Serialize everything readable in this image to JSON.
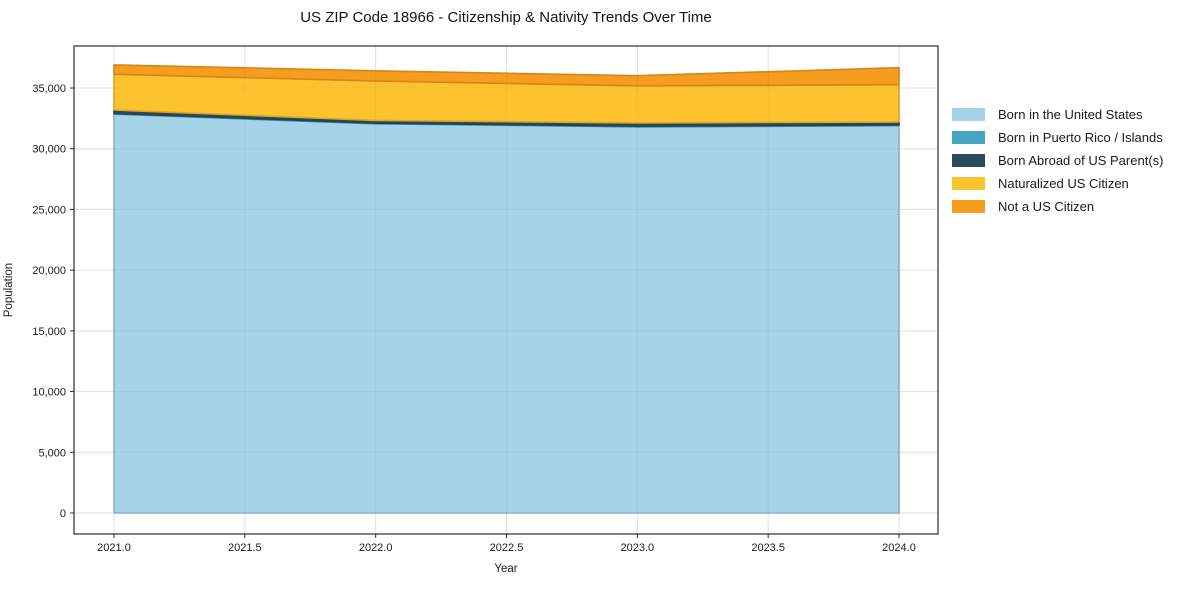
{
  "chart_data": {
    "type": "area",
    "stacked": true,
    "title": "US ZIP Code 18966 - Citizenship & Nativity Trends Over Time",
    "xlabel": "Year",
    "ylabel": "Population",
    "x": [
      2021,
      2022,
      2023,
      2024
    ],
    "x_ticks": [
      2021.0,
      2021.5,
      2022.0,
      2022.5,
      2023.0,
      2023.5,
      2024.0
    ],
    "x_tick_labels": [
      "2021.0",
      "2021.5",
      "2022.0",
      "2022.5",
      "2023.0",
      "2023.5",
      "2024.0"
    ],
    "y_ticks": [
      0,
      5000,
      10000,
      15000,
      20000,
      25000,
      30000,
      35000
    ],
    "y_tick_labels": [
      "0",
      "5,000",
      "10,000",
      "15,000",
      "20,000",
      "25,000",
      "30,000",
      "35,000"
    ],
    "xlim": [
      2020.85,
      2024.15
    ],
    "ylim": [
      -1800,
      38500
    ],
    "grid": true,
    "legend_position": "right-outside",
    "series": [
      {
        "name": "Born in the United States",
        "color": "#a6d3e8",
        "values": [
          32850,
          32050,
          31800,
          31900
        ]
      },
      {
        "name": "Born in Puerto Rico / Islands",
        "color": "#45a5c2",
        "values": [
          60,
          60,
          60,
          60
        ]
      },
      {
        "name": "Born Abroad of US Parent(s)",
        "color": "#2b4a5c",
        "values": [
          280,
          220,
          270,
          240
        ]
      },
      {
        "name": "Naturalized US Citizen",
        "color": "#fdc32f",
        "values": [
          2950,
          3250,
          3050,
          3070
        ]
      },
      {
        "name": "Not a US Citizen",
        "color": "#f69c1f",
        "values": [
          760,
          840,
          830,
          1400
        ]
      }
    ]
  }
}
